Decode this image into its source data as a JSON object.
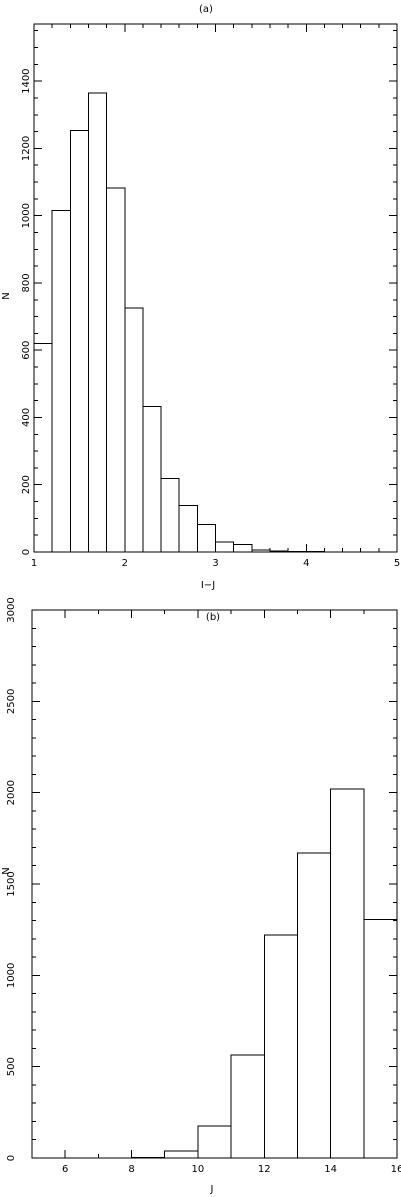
{
  "chart_data": [
    {
      "type": "bar",
      "title": "(a)",
      "xlabel": "I−J",
      "ylabel": "N",
      "xlim": [
        1,
        5
      ],
      "ylim": [
        0,
        1570
      ],
      "bin_width": 0.2,
      "bins": [
        {
          "x0": 1.0,
          "value": 620
        },
        {
          "x0": 1.2,
          "value": 1015
        },
        {
          "x0": 1.4,
          "value": 1253
        },
        {
          "x0": 1.6,
          "value": 1365
        },
        {
          "x0": 1.8,
          "value": 1083
        },
        {
          "x0": 2.0,
          "value": 725
        },
        {
          "x0": 2.2,
          "value": 432
        },
        {
          "x0": 2.4,
          "value": 218
        },
        {
          "x0": 2.6,
          "value": 138
        },
        {
          "x0": 2.8,
          "value": 82
        },
        {
          "x0": 3.0,
          "value": 30
        },
        {
          "x0": 3.2,
          "value": 22
        },
        {
          "x0": 3.4,
          "value": 6
        },
        {
          "x0": 3.6,
          "value": 3
        },
        {
          "x0": 3.8,
          "value": 2
        },
        {
          "x0": 4.0,
          "value": 1
        },
        {
          "x0": 4.2,
          "value": 0
        },
        {
          "x0": 4.4,
          "value": 0
        },
        {
          "x0": 4.6,
          "value": 0
        },
        {
          "x0": 4.8,
          "value": 0
        }
      ],
      "xticks": [
        1,
        2,
        3,
        4,
        5
      ],
      "yticks": [
        0,
        200,
        400,
        600,
        800,
        1000,
        1200,
        1400
      ],
      "grid": false,
      "legend": "none"
    },
    {
      "type": "bar",
      "title": "(b)",
      "xlabel": "J",
      "ylabel": "N",
      "xlim": [
        5,
        16
      ],
      "ylim": [
        0,
        3000
      ],
      "bin_width": 1,
      "bins": [
        {
          "x0": 5,
          "value": 0
        },
        {
          "x0": 6,
          "value": 0
        },
        {
          "x0": 7,
          "value": 0
        },
        {
          "x0": 8,
          "value": 2
        },
        {
          "x0": 9,
          "value": 38
        },
        {
          "x0": 10,
          "value": 175
        },
        {
          "x0": 11,
          "value": 565
        },
        {
          "x0": 12,
          "value": 1220
        },
        {
          "x0": 13,
          "value": 1670
        },
        {
          "x0": 14,
          "value": 2020
        },
        {
          "x0": 15,
          "value": 1305
        }
      ],
      "xticks": [
        6,
        8,
        10,
        12,
        14,
        16
      ],
      "yticks": [
        0,
        500,
        1000,
        1500,
        2000,
        2500,
        3000
      ],
      "grid": false,
      "legend": "none"
    }
  ]
}
